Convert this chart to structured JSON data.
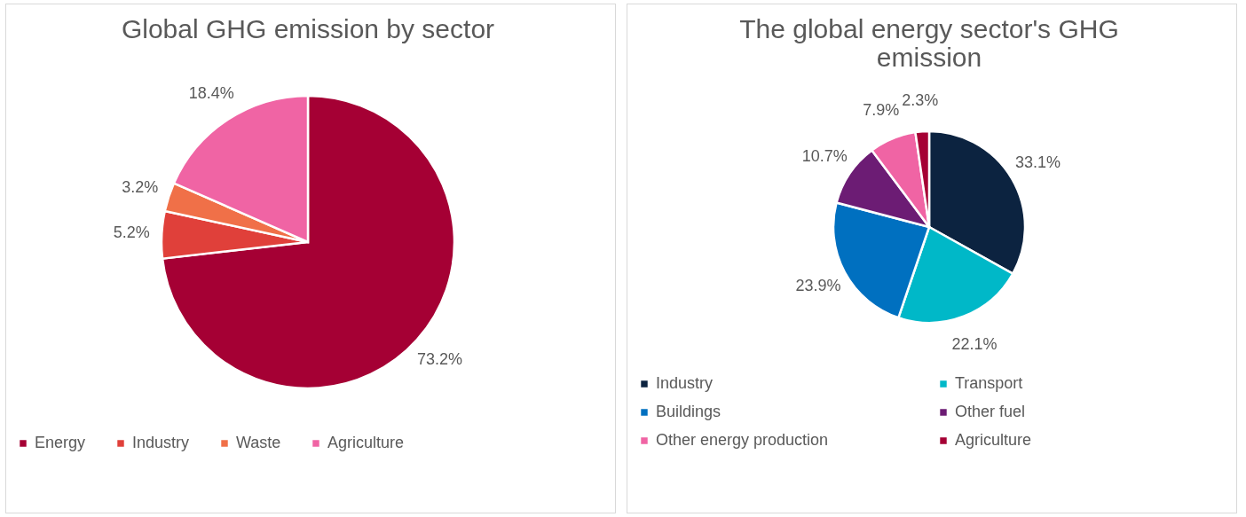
{
  "chart_data": [
    {
      "type": "pie",
      "title": "Global GHG emission by sector",
      "categories": [
        "Energy",
        "Industry",
        "Waste",
        "Agriculture"
      ],
      "values": [
        73.2,
        5.2,
        3.2,
        18.4
      ],
      "value_labels": [
        "73.2%",
        "5.2%",
        "3.2%",
        "18.4%"
      ],
      "colors": [
        "#a50034",
        "#e0403a",
        "#f07048",
        "#f064a4"
      ],
      "legend": "bottom"
    },
    {
      "type": "pie",
      "title": "The global energy sector's GHG emission",
      "categories": [
        "Industry",
        "Transport",
        "Buildings",
        "Other fuel",
        "Other energy production",
        "Agriculture"
      ],
      "values": [
        33.1,
        22.1,
        23.9,
        10.7,
        7.9,
        2.3
      ],
      "value_labels": [
        "33.1%",
        "22.1%",
        "23.9%",
        "10.7%",
        "7.9%",
        "2.3%"
      ],
      "colors": [
        "#0c2340",
        "#00b8c8",
        "#0070c0",
        "#6c1c74",
        "#f064a4",
        "#a50034"
      ],
      "legend": "bottom"
    }
  ]
}
